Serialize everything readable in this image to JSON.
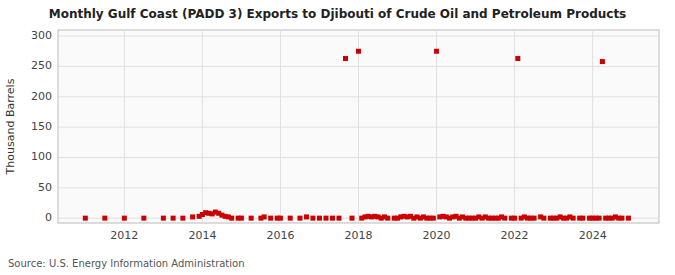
{
  "chart_data": {
    "type": "scatter",
    "title": "Monthly Gulf Coast (PADD 3) Exports to Djibouti of Crude Oil and Petroleum Products",
    "ylabel": "Thousand Barrels",
    "source": "Source: U.S. Energy Information Administration",
    "color": "#cc0000",
    "marker": "square",
    "grid": true,
    "xlim": [
      2010.3,
      2025.7
    ],
    "xticks": [
      2012,
      2014,
      2016,
      2018,
      2020,
      2022,
      2024
    ],
    "ylim": [
      -8,
      310
    ],
    "yticks": [
      0,
      50,
      100,
      150,
      200,
      250,
      300
    ],
    "x": [
      2011.0,
      2011.5,
      2012.0,
      2012.5,
      2013.0,
      2013.25,
      2013.5,
      2013.75,
      2013.917,
      2014.0,
      2014.083,
      2014.167,
      2014.25,
      2014.333,
      2014.417,
      2014.5,
      2014.583,
      2014.667,
      2014.75,
      2014.917,
      2015.0,
      2015.25,
      2015.5,
      2015.583,
      2015.75,
      2015.917,
      2016.0,
      2016.25,
      2016.5,
      2016.667,
      2016.833,
      2017.0,
      2017.167,
      2017.333,
      2017.5,
      2017.667,
      2017.833,
      2018.0,
      2018.083,
      2018.167,
      2018.25,
      2018.333,
      2018.417,
      2018.5,
      2018.583,
      2018.667,
      2018.75,
      2018.917,
      2019.0,
      2019.083,
      2019.167,
      2019.25,
      2019.333,
      2019.417,
      2019.5,
      2019.583,
      2019.667,
      2019.75,
      2019.833,
      2019.917,
      2020.0,
      2020.083,
      2020.167,
      2020.25,
      2020.333,
      2020.417,
      2020.5,
      2020.583,
      2020.667,
      2020.75,
      2020.833,
      2020.917,
      2021.0,
      2021.083,
      2021.167,
      2021.25,
      2021.333,
      2021.417,
      2021.5,
      2021.583,
      2021.667,
      2021.75,
      2021.917,
      2022.0,
      2022.083,
      2022.167,
      2022.25,
      2022.333,
      2022.417,
      2022.5,
      2022.667,
      2022.75,
      2022.917,
      2023.0,
      2023.083,
      2023.167,
      2023.25,
      2023.333,
      2023.417,
      2023.5,
      2023.667,
      2023.75,
      2023.917,
      2024.0,
      2024.083,
      2024.167,
      2024.25,
      2024.333,
      2024.417,
      2024.5,
      2024.583,
      2024.667,
      2024.75,
      2024.917
    ],
    "values": [
      0,
      0,
      0,
      0,
      0,
      0,
      0,
      2,
      3,
      6,
      9,
      8,
      7,
      10,
      8,
      5,
      3,
      2,
      0,
      0,
      0,
      0,
      0,
      2,
      0,
      0,
      0,
      0,
      0,
      2,
      0,
      0,
      0,
      0,
      0,
      263,
      0,
      275,
      0,
      2,
      3,
      2,
      3,
      2,
      0,
      2,
      0,
      0,
      0,
      2,
      3,
      2,
      3,
      0,
      2,
      0,
      2,
      0,
      0,
      0,
      275,
      2,
      3,
      2,
      0,
      2,
      3,
      0,
      2,
      0,
      0,
      0,
      0,
      2,
      0,
      2,
      0,
      0,
      0,
      0,
      2,
      0,
      0,
      0,
      263,
      0,
      2,
      0,
      0,
      0,
      2,
      0,
      0,
      0,
      0,
      2,
      0,
      0,
      2,
      0,
      0,
      0,
      0,
      0,
      0,
      0,
      258,
      0,
      0,
      0,
      2,
      0,
      0,
      0
    ]
  }
}
